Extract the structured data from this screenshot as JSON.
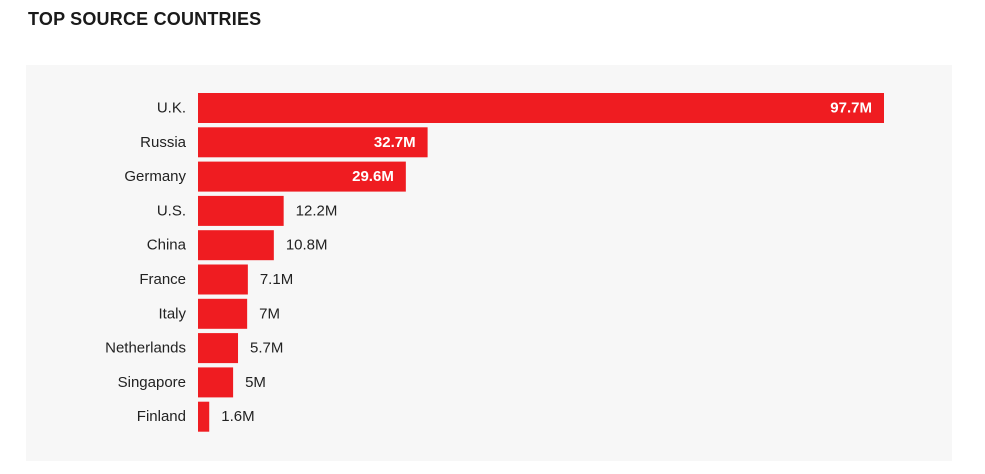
{
  "page": {
    "title": "TOP SOURCE COUNTRIES"
  },
  "colors": {
    "bar": "#ef1c21",
    "panel_background": "#f7f7f7",
    "label_text": "#222222",
    "inside_label_text": "#ffffff"
  },
  "chart_data": {
    "type": "bar",
    "orientation": "horizontal",
    "title": "TOP SOURCE COUNTRIES",
    "xlabel": "",
    "ylabel": "",
    "grid": false,
    "legend": "none",
    "xlim": [
      0,
      97.7
    ],
    "categories": [
      "U.K.",
      "Russia",
      "Germany",
      "U.S.",
      "China",
      "France",
      "Italy",
      "Netherlands",
      "Singapore",
      "Finland"
    ],
    "values": [
      97.7,
      32.7,
      29.6,
      12.2,
      10.8,
      7.1,
      7,
      5.7,
      5,
      1.6
    ],
    "value_labels": [
      "97.7M",
      "32.7M",
      "29.6M",
      "12.2M",
      "10.8M",
      "7.1M",
      "7M",
      "5.7M",
      "5M",
      "1.6M"
    ]
  }
}
